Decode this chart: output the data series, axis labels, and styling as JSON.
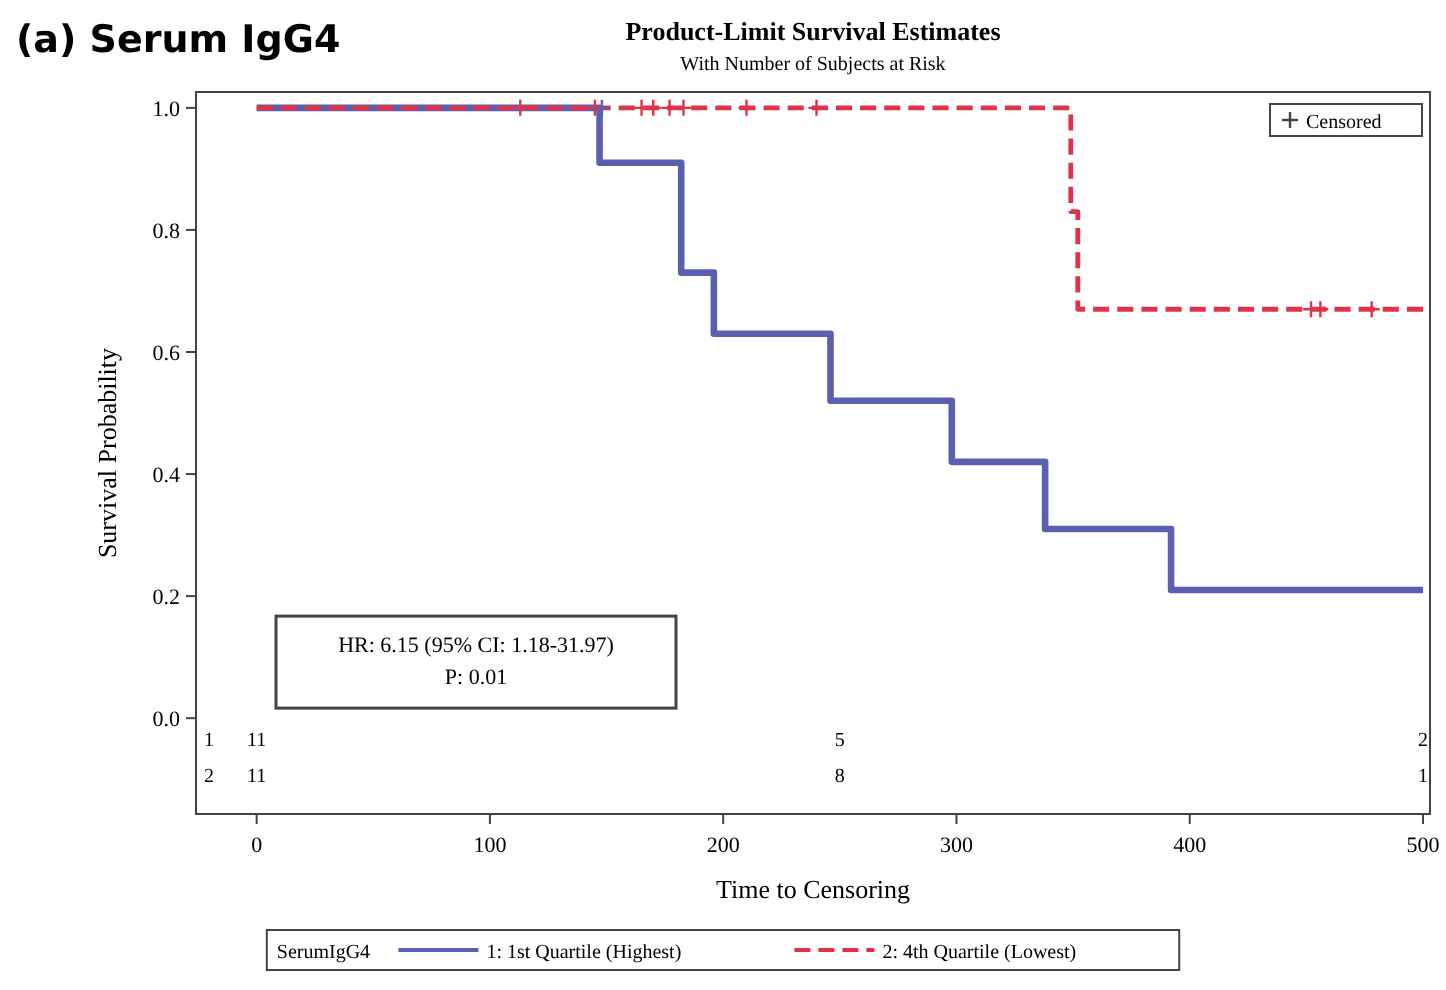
{
  "chart_data": {
    "type": "step",
    "title": "Product-Limit Survival Estimates",
    "subtitle": "With Number of Subjects at Risk",
    "xlabel": "Time to Censoring",
    "ylabel": "Survival Probability",
    "legend_title": "SerumIgG4",
    "legend": "bottom",
    "grid": false,
    "xlim": [
      -26,
      503
    ],
    "ylim": [
      -0.157,
      1.026
    ],
    "xticks": [
      0,
      100,
      200,
      300,
      400,
      500
    ],
    "yticks": [
      {
        "value": 0,
        "label": "0.0"
      },
      {
        "value": 0.2,
        "label": "0.2"
      },
      {
        "value": 0.4,
        "label": "0.4"
      },
      {
        "value": 0.6,
        "label": "0.6"
      },
      {
        "value": 0.8,
        "label": "0.8"
      },
      {
        "value": 1,
        "label": "1.0"
      }
    ],
    "series": [
      {
        "name": "1: 1st Quartile (Highest)",
        "color": "#5b5fb0",
        "line_style": "solid",
        "x": [
          0,
          147,
          182,
          196,
          246,
          298,
          338,
          392,
          500
        ],
        "values": [
          1,
          0.91,
          0.73,
          0.63,
          0.52,
          0.42,
          0.31,
          0.21,
          0.21
        ]
      },
      {
        "name": "2: 4th Quartile (Lowest)",
        "color": "#e0334a",
        "line_style": "dashed",
        "x": [
          0,
          349,
          352,
          500
        ],
        "values": [
          1,
          0.83,
          0.67,
          0.67
        ]
      },
      {
        "type": "scatter",
        "marker": "cross",
        "x": [
          113,
          145,
          148,
          165,
          170,
          177,
          183,
          210,
          240,
          452,
          456,
          478
        ],
        "values": [
          1,
          1,
          1,
          1,
          1,
          1,
          1,
          1,
          1,
          0.67,
          0.67,
          0.67
        ],
        "colors": [
          "#e0334a",
          "#e0334a",
          "#5b5fb0",
          "#e0334a",
          "#e0334a",
          "#e0334a",
          "#e0334a",
          "#e0334a",
          "#e0334a",
          "#e0334a",
          "#e0334a",
          "#e0334a"
        ]
      }
    ],
    "annotations": [
      "(a) Serum IgG4",
      "HR: 6.15 (95% CI: 1.18-31.97)",
      "P: 0.01",
      "Censored",
      "1",
      "11",
      "5",
      "2",
      "2",
      "11",
      "8",
      "1"
    ]
  }
}
